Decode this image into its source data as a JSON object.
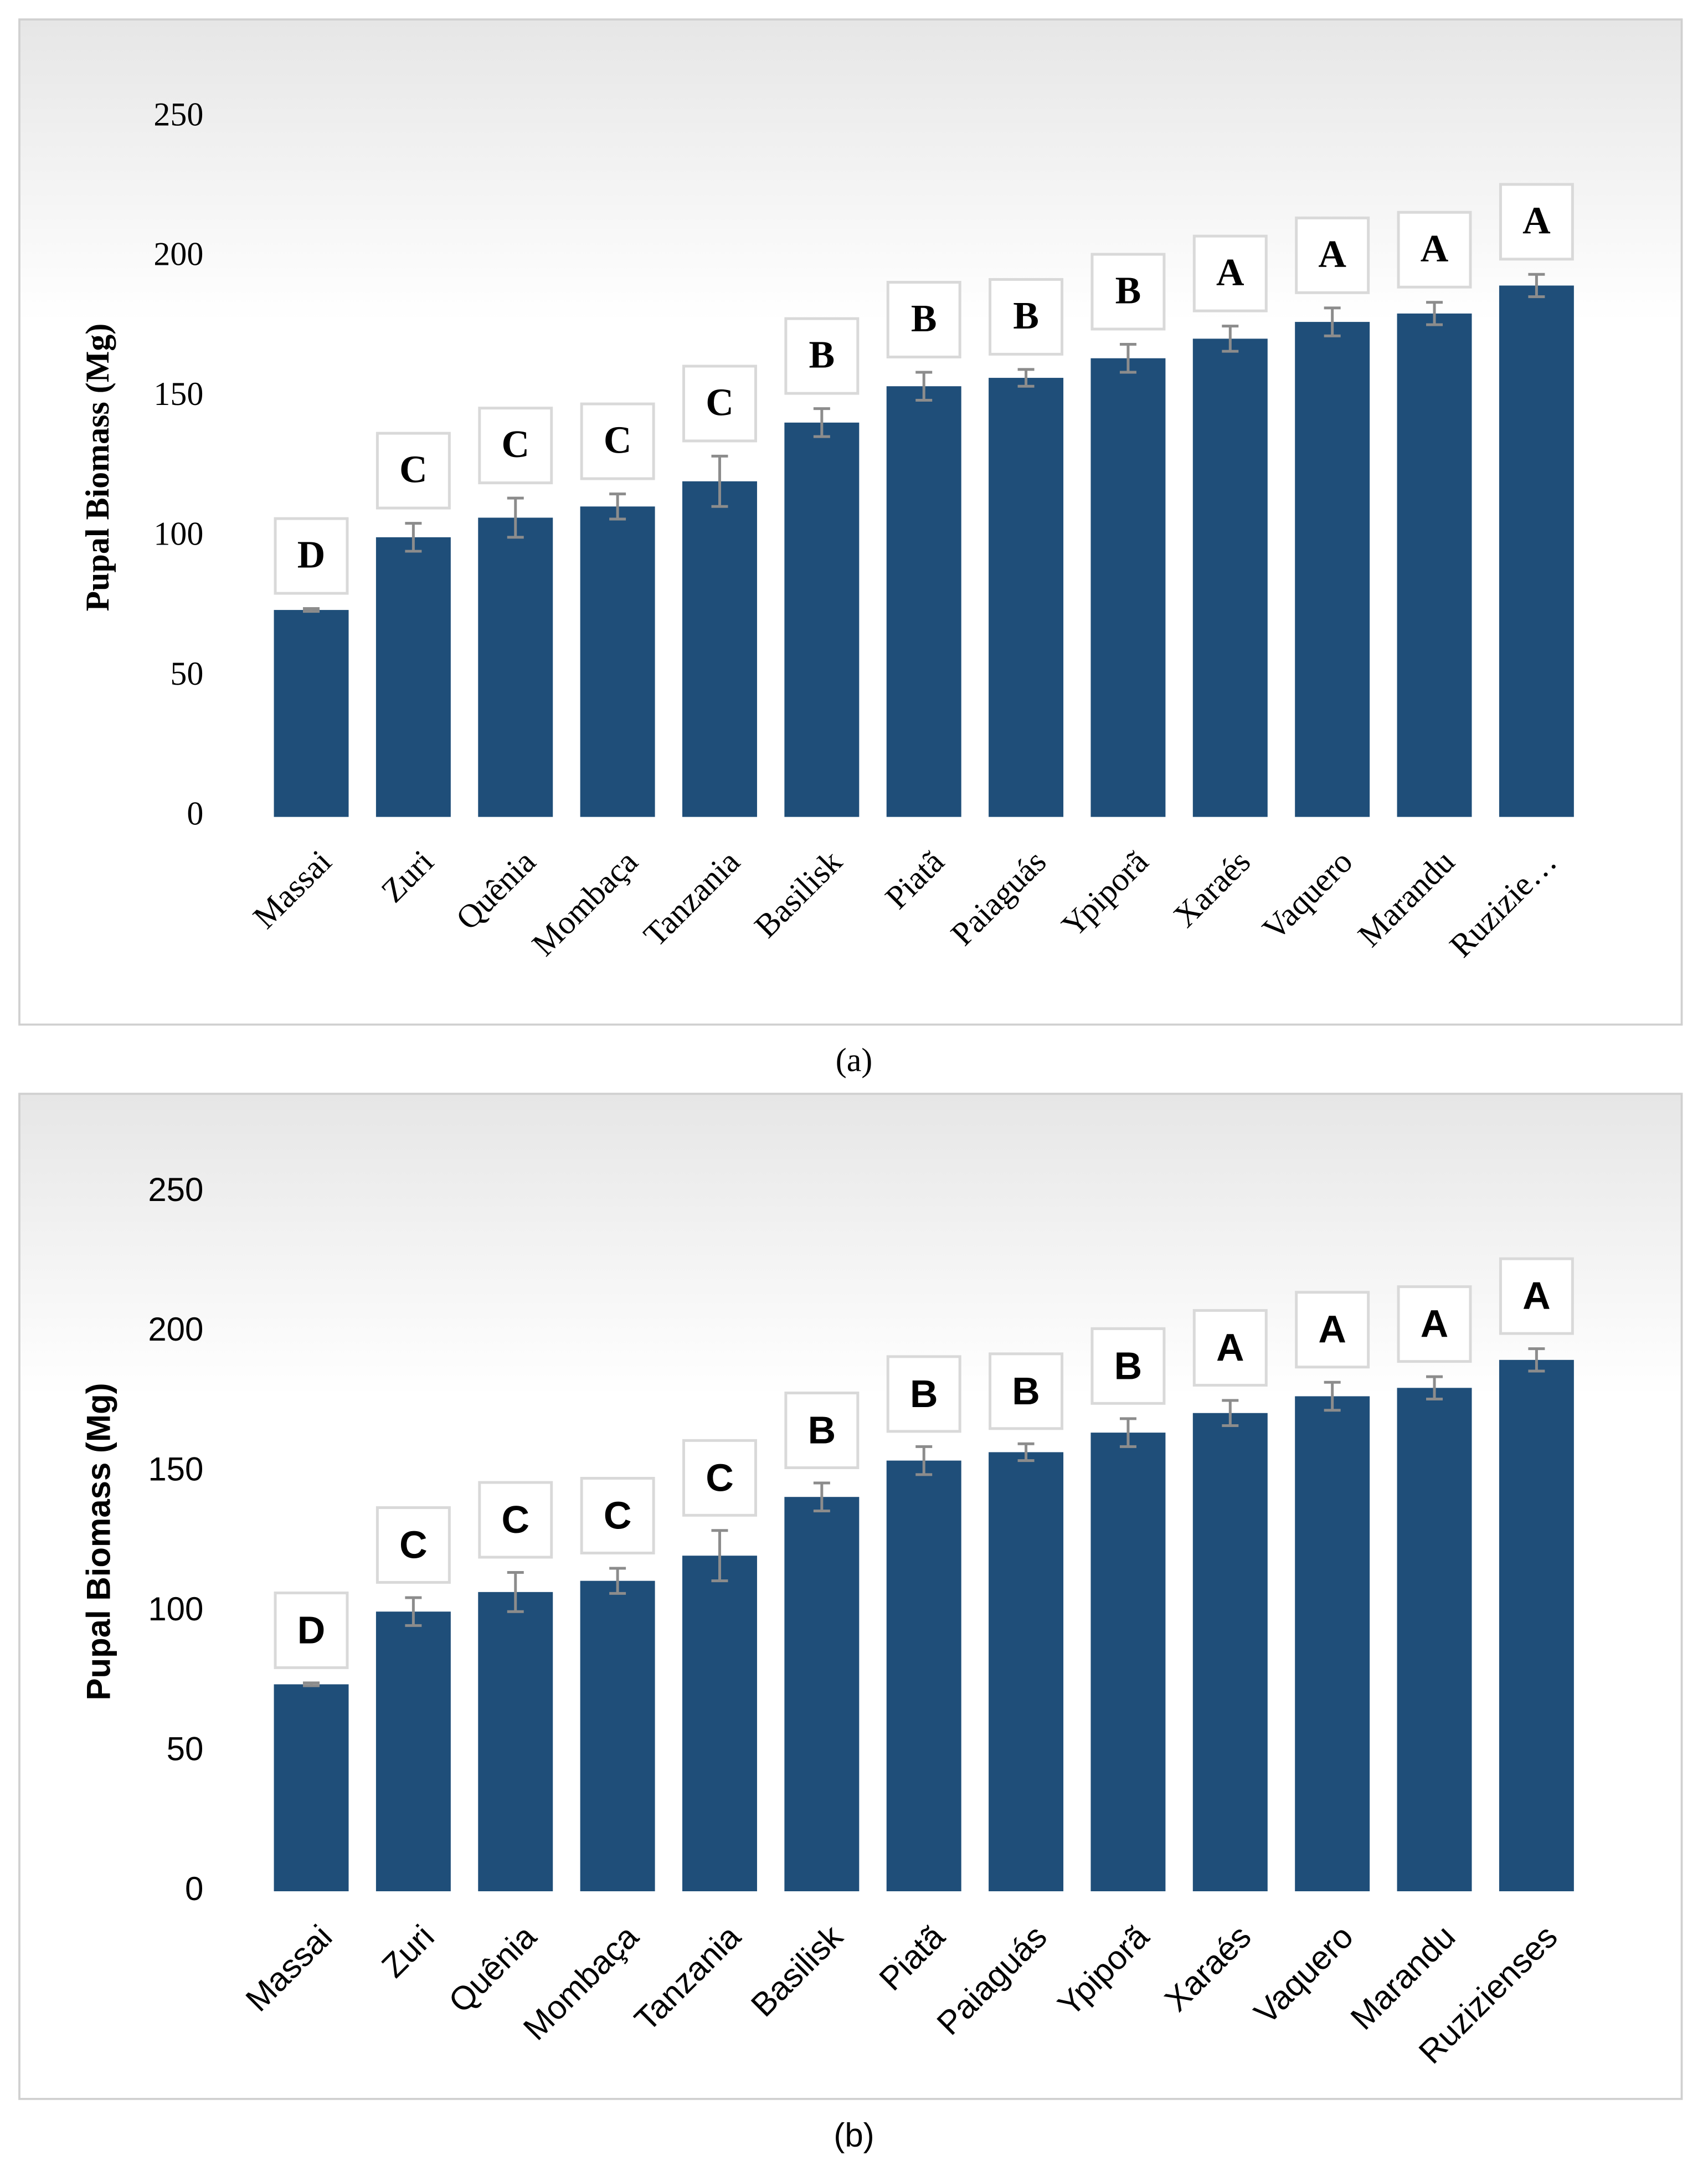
{
  "chart_data": [
    {
      "type": "bar",
      "caption": "(a)",
      "ylabel": "Pupal Biomass (Mg)",
      "categories": [
        "Massai",
        "Zuri",
        "Quênia",
        "Mombaça",
        "Tanzania",
        "Basilisk",
        "Piatã",
        "Paiaguás",
        "Ypiporã",
        "Xaraés",
        "Vaquero",
        "Marandu",
        "Ruzizie…"
      ],
      "values": [
        74,
        100,
        107,
        111,
        120,
        141,
        154,
        157,
        164,
        171,
        177,
        180,
        190
      ],
      "errors": [
        0.5,
        5,
        7,
        4.5,
        9,
        5,
        5,
        3,
        5,
        4.5,
        5,
        4,
        4
      ],
      "annotations": [
        "D",
        "C",
        "C",
        "C",
        "C",
        "B",
        "B",
        "B",
        "B",
        "A",
        "A",
        "A",
        "A"
      ],
      "color": "#1f4e79",
      "ylim": [
        0,
        250
      ],
      "yticks": [
        0,
        50,
        100,
        150,
        200,
        250
      ]
    },
    {
      "type": "bar",
      "caption": "(b)",
      "ylabel": "Pupal Biomass (Mg)",
      "categories": [
        "Massai",
        "Zuri",
        "Quênia",
        "Mombaça",
        "Tanzania",
        "Basilisk",
        "Piatã",
        "Paiaguás",
        "Ypiporã",
        "Xaraés",
        "Vaquero",
        "Marandu",
        "Ruzizienses"
      ],
      "values": [
        74,
        100,
        107,
        111,
        120,
        141,
        154,
        157,
        164,
        171,
        177,
        180,
        190
      ],
      "errors": [
        0.5,
        5,
        7,
        4.5,
        9,
        5,
        5,
        3,
        5,
        4.5,
        5,
        4,
        4
      ],
      "annotations": [
        "D",
        "C",
        "C",
        "C",
        "C",
        "B",
        "B",
        "B",
        "B",
        "A",
        "A",
        "A",
        "A"
      ],
      "color": "#1f4e79",
      "ylim": [
        0,
        250
      ],
      "yticks": [
        0,
        50,
        100,
        150,
        200,
        250
      ]
    }
  ]
}
